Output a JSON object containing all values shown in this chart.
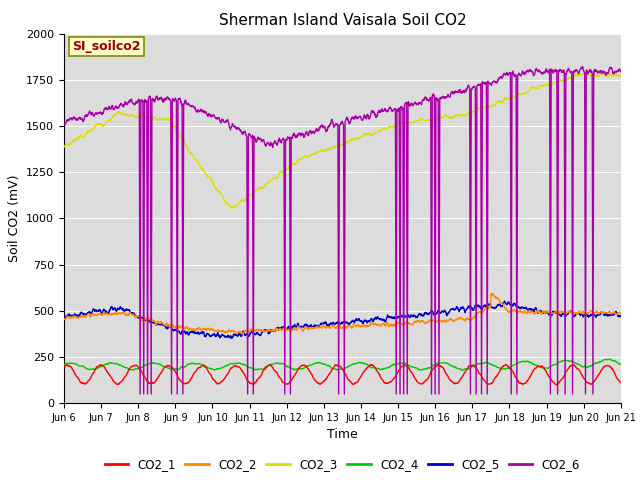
{
  "title": "Sherman Island Vaisala Soil CO2",
  "xlabel": "Time",
  "ylabel": "Soil CO2 (mV)",
  "ylim": [
    0,
    2000
  ],
  "xlim": [
    0,
    15
  ],
  "xtick_labels": [
    "Jun 6",
    "Jun 7",
    "Jun 8",
    "Jun 9",
    "Jun 10",
    "Jun 11",
    "Jun 12",
    "Jun 13",
    "Jun 14",
    "Jun 15",
    "Jun 16",
    "Jun 17",
    "Jun 18",
    "Jun 19",
    "Jun 20",
    "Jun 21"
  ],
  "xtick_positions": [
    0,
    1,
    2,
    3,
    4,
    5,
    6,
    7,
    8,
    9,
    10,
    11,
    12,
    13,
    14,
    15
  ],
  "annotation_text": "SI_soilco2",
  "annotation_bg": "#ffffcc",
  "annotation_fg": "#990000",
  "colors": {
    "CO2_1": "#ff0000",
    "CO2_2": "#ff8800",
    "CO2_3": "#dddd00",
    "CO2_4": "#00cc00",
    "CO2_5": "#0000cc",
    "CO2_6": "#aa00aa"
  },
  "bg_color": "#dcdcdc",
  "fig_bg_color": "#ffffff",
  "legend_labels": [
    "CO2_1",
    "CO2_2",
    "CO2_3",
    "CO2_4",
    "CO2_5",
    "CO2_6"
  ]
}
